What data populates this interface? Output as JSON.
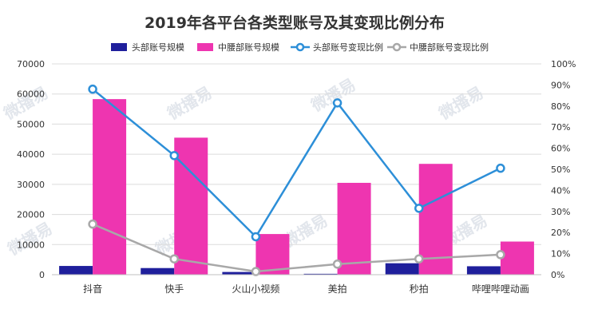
{
  "chart_data": {
    "type": "bar",
    "title": "2019年各平台各类型账号及其变现比例分布",
    "categories": [
      "抖音",
      "快手",
      "火山小视频",
      "美拍",
      "秒拍",
      "哔哩哔哩动画"
    ],
    "series": [
      {
        "name": "头部账号规模",
        "kind": "bar",
        "axis": "left",
        "color": "#1f1f9c",
        "values": [
          2900,
          2200,
          900,
          300,
          3800,
          2800
        ]
      },
      {
        "name": "中腰部账号规模",
        "kind": "bar",
        "axis": "left",
        "color": "#ee35b0",
        "values": [
          58300,
          45500,
          13500,
          30500,
          36800,
          11000
        ]
      },
      {
        "name": "头部账号变现比例",
        "kind": "line",
        "axis": "right",
        "color": "#2d8fd8",
        "values": [
          88,
          56.5,
          18,
          81.5,
          31.5,
          50.5
        ]
      },
      {
        "name": "中腰部账号变现比例",
        "kind": "line",
        "axis": "right",
        "color": "#a8a8a8",
        "values": [
          24,
          7.5,
          1.5,
          5,
          7.5,
          9.5
        ]
      }
    ],
    "y_left": {
      "min": 0,
      "max": 70000,
      "ticks": [
        "0",
        "10000",
        "20000",
        "30000",
        "40000",
        "50000",
        "60000",
        "70000"
      ]
    },
    "y_right": {
      "min": 0,
      "max": 100,
      "ticks": [
        "0%",
        "10%",
        "20%",
        "30%",
        "40%",
        "50%",
        "60%",
        "70%",
        "80%",
        "90%",
        "100%"
      ]
    },
    "grid": true,
    "legend_position": "top",
    "watermark": "微播易"
  }
}
